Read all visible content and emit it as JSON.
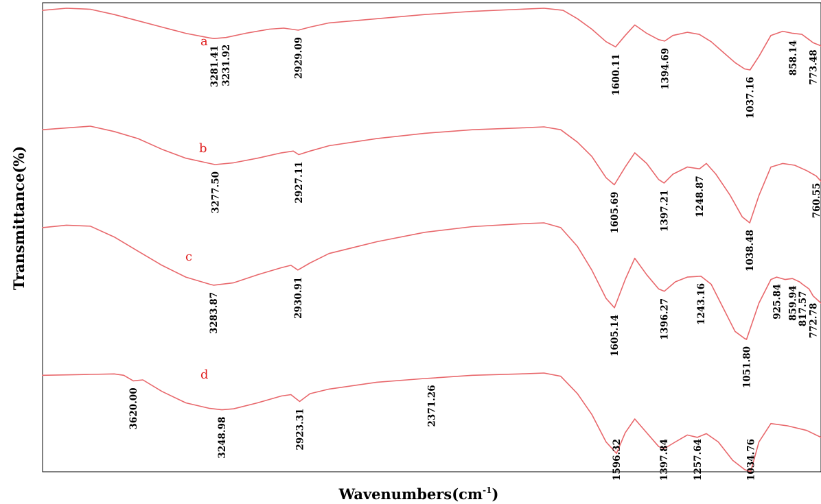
{
  "chart_data": {
    "type": "line",
    "xlabel": "Wavenumbers(cm-1)",
    "xlabel_main": "Wavenumbers(cm",
    "xlabel_sup": "-1",
    "xlabel_end": ")",
    "ylabel": "Transmittance(%)",
    "x_reversed": true,
    "ylim": [
      0,
      100
    ],
    "grid": false,
    "line_color": "#E8676B",
    "label_color": "#E02020",
    "series": [
      {
        "name": "a",
        "peaks": [
          3281.41,
          3231.92,
          2929.09,
          1600.11,
          1394.69,
          1037.16,
          858.14,
          773.48
        ],
        "peak_labels": [
          "3281.41",
          "3231.92",
          "2929.09",
          "1600.11",
          "1394.69",
          "1037.16",
          "858.14",
          "773.48"
        ],
        "points": [
          [
            4000,
            97
          ],
          [
            3900,
            98
          ],
          [
            3800,
            97.5
          ],
          [
            3700,
            95
          ],
          [
            3600,
            92
          ],
          [
            3500,
            89
          ],
          [
            3400,
            86
          ],
          [
            3300,
            83.8
          ],
          [
            3281.41,
            83.5
          ],
          [
            3231.92,
            84
          ],
          [
            3150,
            86
          ],
          [
            3050,
            88
          ],
          [
            2990,
            88.5
          ],
          [
            2929.09,
            87.5
          ],
          [
            2880,
            89
          ],
          [
            2800,
            91
          ],
          [
            2600,
            93
          ],
          [
            2400,
            95
          ],
          [
            2200,
            96.5
          ],
          [
            2000,
            97.5
          ],
          [
            1900,
            98
          ],
          [
            1820,
            97
          ],
          [
            1760,
            93
          ],
          [
            1700,
            88
          ],
          [
            1640,
            82
          ],
          [
            1600.11,
            79.5
          ],
          [
            1560,
            85
          ],
          [
            1520,
            90
          ],
          [
            1470,
            86
          ],
          [
            1420,
            83
          ],
          [
            1394.69,
            82.3
          ],
          [
            1360,
            85
          ],
          [
            1300,
            86.5
          ],
          [
            1250,
            85.5
          ],
          [
            1200,
            82
          ],
          [
            1150,
            77
          ],
          [
            1100,
            72
          ],
          [
            1060,
            69
          ],
          [
            1037.16,
            68.5
          ],
          [
            1000,
            75
          ],
          [
            950,
            85
          ],
          [
            900,
            87
          ],
          [
            858.14,
            86
          ],
          [
            820,
            85.5
          ],
          [
            790,
            83
          ],
          [
            773.48,
            81.5
          ],
          [
            740,
            80
          ]
        ]
      },
      {
        "name": "b",
        "peaks": [
          3277.5,
          2927.11,
          1605.69,
          1397.21,
          1248.87,
          1038.48,
          760.55
        ],
        "peak_labels": [
          "3277.50",
          "2927.11",
          "1605.69",
          "1397.21",
          "1248.87",
          "1038.48",
          "760.55"
        ],
        "points": [
          [
            4000,
            70.5
          ],
          [
            3900,
            71
          ],
          [
            3800,
            71.5
          ],
          [
            3700,
            70
          ],
          [
            3600,
            68
          ],
          [
            3500,
            65
          ],
          [
            3400,
            62.5
          ],
          [
            3300,
            61
          ],
          [
            3277.5,
            60.7
          ],
          [
            3200,
            61.2
          ],
          [
            3100,
            62.5
          ],
          [
            3000,
            64
          ],
          [
            2950,
            64.5
          ],
          [
            2927.11,
            63.5
          ],
          [
            2880,
            64.5
          ],
          [
            2800,
            66
          ],
          [
            2600,
            68
          ],
          [
            2400,
            69.5
          ],
          [
            2200,
            70.5
          ],
          [
            2000,
            71
          ],
          [
            1900,
            71.3
          ],
          [
            1830,
            70.5
          ],
          [
            1760,
            67
          ],
          [
            1700,
            63
          ],
          [
            1640,
            57
          ],
          [
            1605.69,
            55
          ],
          [
            1560,
            60
          ],
          [
            1520,
            64
          ],
          [
            1470,
            61
          ],
          [
            1420,
            56.5
          ],
          [
            1397.21,
            55.5
          ],
          [
            1360,
            58
          ],
          [
            1300,
            60
          ],
          [
            1248.87,
            59.5
          ],
          [
            1220,
            61
          ],
          [
            1180,
            58
          ],
          [
            1120,
            52
          ],
          [
            1070,
            46
          ],
          [
            1038.48,
            44.3
          ],
          [
            1000,
            52
          ],
          [
            950,
            60
          ],
          [
            900,
            61
          ],
          [
            850,
            60.5
          ],
          [
            800,
            59
          ],
          [
            760.55,
            57.5
          ],
          [
            740,
            56
          ]
        ]
      },
      {
        "name": "c",
        "peaks": [
          3283.87,
          2930.91,
          1605.14,
          1396.27,
          1243.16,
          1051.8,
          925.84,
          859.94,
          817.57,
          772.78
        ],
        "peak_labels": [
          "3283.87",
          "2930.91",
          "1605.14",
          "1396.27",
          "1243.16",
          "1051.80",
          "925.84",
          "859.94",
          "817.57",
          "772.78"
        ],
        "points": [
          [
            4000,
            48
          ],
          [
            3900,
            48.5
          ],
          [
            3800,
            48.3
          ],
          [
            3700,
            46
          ],
          [
            3600,
            43
          ],
          [
            3500,
            40
          ],
          [
            3400,
            37.5
          ],
          [
            3300,
            36
          ],
          [
            3283.87,
            35.8
          ],
          [
            3200,
            36.3
          ],
          [
            3100,
            38
          ],
          [
            3000,
            39.5
          ],
          [
            2960,
            40
          ],
          [
            2930.91,
            39
          ],
          [
            2880,
            40.5
          ],
          [
            2800,
            42.5
          ],
          [
            2600,
            45
          ],
          [
            2400,
            47
          ],
          [
            2200,
            48.2
          ],
          [
            2000,
            48.8
          ],
          [
            1900,
            49
          ],
          [
            1830,
            48
          ],
          [
            1760,
            44
          ],
          [
            1700,
            39
          ],
          [
            1640,
            33
          ],
          [
            1605.14,
            31
          ],
          [
            1560,
            37
          ],
          [
            1520,
            41.5
          ],
          [
            1470,
            38
          ],
          [
            1420,
            35
          ],
          [
            1396.27,
            34.5
          ],
          [
            1350,
            36.5
          ],
          [
            1300,
            37.5
          ],
          [
            1243.16,
            37.7
          ],
          [
            1200,
            36
          ],
          [
            1150,
            31
          ],
          [
            1100,
            26
          ],
          [
            1060,
            24.5
          ],
          [
            1051.8,
            24.3
          ],
          [
            1000,
            32
          ],
          [
            950,
            37
          ],
          [
            925.84,
            37.5
          ],
          [
            890,
            37
          ],
          [
            859.94,
            37.2
          ],
          [
            830,
            36.5
          ],
          [
            817.57,
            36
          ],
          [
            790,
            35
          ],
          [
            772.78,
            33.5
          ],
          [
            740,
            32
          ]
        ]
      },
      {
        "name": "d",
        "peaks": [
          3620.0,
          3248.98,
          2923.31,
          2371.26,
          1596.32,
          1397.84,
          1257.64,
          1034.76
        ],
        "peak_labels": [
          "3620.00",
          "3248.98",
          "2923.31",
          "2371.26",
          "1596.32",
          "1397.84",
          "1257.64",
          "1034.76"
        ],
        "points": [
          [
            4000,
            24.5
          ],
          [
            3900,
            24.6
          ],
          [
            3800,
            24.7
          ],
          [
            3700,
            24.8
          ],
          [
            3660,
            24.5
          ],
          [
            3620,
            23.3
          ],
          [
            3580,
            23.5
          ],
          [
            3500,
            21
          ],
          [
            3400,
            18.5
          ],
          [
            3300,
            17.3
          ],
          [
            3248.98,
            17
          ],
          [
            3200,
            17.2
          ],
          [
            3100,
            18.5
          ],
          [
            3000,
            20
          ],
          [
            2960,
            20.3
          ],
          [
            2923.31,
            18.8
          ],
          [
            2880,
            20.5
          ],
          [
            2800,
            21.5
          ],
          [
            2600,
            23
          ],
          [
            2400,
            23.8
          ],
          [
            2371.26,
            23.9
          ],
          [
            2200,
            24.5
          ],
          [
            2000,
            24.8
          ],
          [
            1900,
            25
          ],
          [
            1830,
            24.3
          ],
          [
            1760,
            20.5
          ],
          [
            1700,
            16
          ],
          [
            1640,
            10
          ],
          [
            1596.32,
            7.5
          ],
          [
            1560,
            12
          ],
          [
            1520,
            15
          ],
          [
            1470,
            12
          ],
          [
            1420,
            9
          ],
          [
            1397.84,
            8.5
          ],
          [
            1350,
            10
          ],
          [
            1300,
            11.5
          ],
          [
            1257.64,
            11
          ],
          [
            1220,
            11.8
          ],
          [
            1170,
            10
          ],
          [
            1110,
            6
          ],
          [
            1060,
            4
          ],
          [
            1034.76,
            3.5
          ],
          [
            1000,
            10
          ],
          [
            950,
            14
          ],
          [
            880,
            13.5
          ],
          [
            800,
            12.5
          ],
          [
            740,
            11
          ]
        ]
      }
    ]
  }
}
